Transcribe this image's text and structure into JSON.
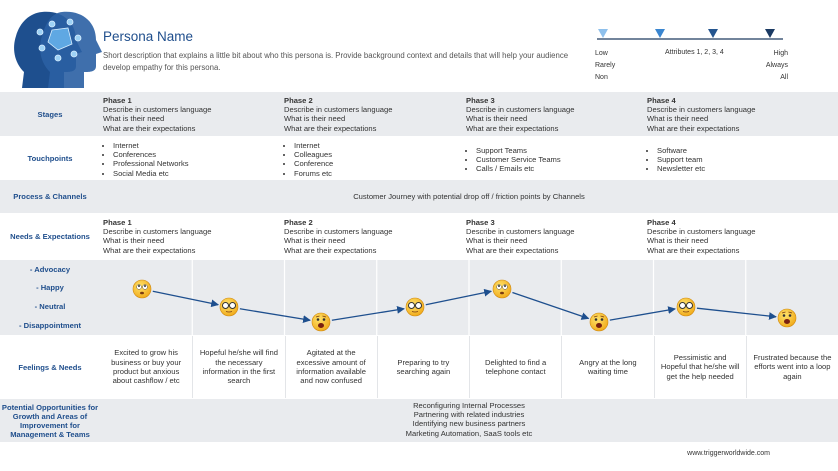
{
  "header": {
    "title": "Persona Name",
    "description": "Short description that explains a little bit about who this persona is. Provide background context and details that will help your audience develop empathy for this persona."
  },
  "attributes": {
    "low": [
      "Low",
      "Rarely",
      "Non"
    ],
    "middle": "Attributes 1, 2, 3, 4",
    "high": [
      "High",
      "Always",
      "All"
    ]
  },
  "stages": {
    "label": "Stages",
    "phases": [
      {
        "title": "Phase 1",
        "lines": [
          "Describe in customers language",
          "What is their need",
          "What are their expectations"
        ]
      },
      {
        "title": "Phase 2",
        "lines": [
          "Describe in customers language",
          "What is their need",
          "What are their expectations"
        ]
      },
      {
        "title": "Phase 3",
        "lines": [
          "Describe in customers language",
          "What is their need",
          "What are their expectations"
        ]
      },
      {
        "title": "Phase 4",
        "lines": [
          "Describe in customers language",
          "What is their need",
          "What are their expectations"
        ]
      }
    ]
  },
  "touchpoints": {
    "label": "Touchpoints",
    "columns": [
      [
        "Internet",
        "Conferences",
        "Professional Networks",
        "Social Media etc"
      ],
      [
        "Internet",
        "Colleagues",
        "Conference",
        "Forums etc"
      ],
      [
        "Support Teams",
        "Customer Service Teams",
        "Calls / Emails etc"
      ],
      [
        "Software",
        "Support team",
        "Newsletter etc"
      ]
    ]
  },
  "process": {
    "label": "Process & Channels",
    "text": "Customer Journey with potential drop off / friction points by Channels"
  },
  "needs": {
    "label": "Needs & Expectations",
    "phases": [
      {
        "title": "Phase 1",
        "lines": [
          "Describe in customers language",
          "What is their need",
          "What are their expectations"
        ]
      },
      {
        "title": "Phase 2",
        "lines": [
          "Describe in customers language",
          "What is their need",
          "What are their expectations"
        ]
      },
      {
        "title": "Phase 3",
        "lines": [
          "Describe in customers language",
          "What is their need",
          "What are their expectations"
        ]
      },
      {
        "title": "Phase 4",
        "lines": [
          "Describe in customers language",
          "What is their need",
          "What are their expectations"
        ]
      }
    ]
  },
  "emotion_levels": [
    "- Advocacy",
    "- Happy",
    "- Neutral",
    "- Disappointment"
  ],
  "feelings": {
    "label": "Feelings & Needs",
    "items": [
      "Excited to grow his business or buy your product but anxious about cashflow / etc",
      "Hopeful he/she will find the necessary information in the first search",
      "Agitated at the excessive amount of information available and now confused",
      "Preparing to try searching again",
      "Delighted to find a telephone contact",
      "Angry at the long waiting time",
      "Pessimistic and Hopeful that he/she will get the help needed",
      "Frustrated because the efforts went into a loop again"
    ]
  },
  "opportunities": {
    "label": "Potential Opportunities for Growth and Areas of Improvement for Management & Teams",
    "lines": [
      "Reconfiguring Internal Processes",
      "Partnering with related industries",
      "Identifying new business partners",
      "Marketing Automation, SaaS tools etc"
    ]
  },
  "footer": "www.triggerworldwide.com"
}
